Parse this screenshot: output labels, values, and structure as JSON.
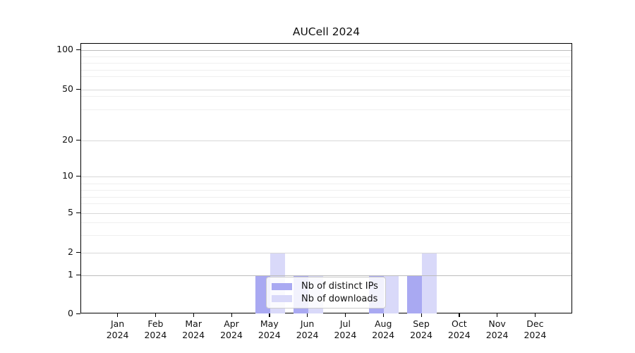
{
  "title": "AUCell 2024",
  "chart_data": {
    "type": "bar",
    "title": "AUCell 2024",
    "categories": [
      "Jan",
      "Feb",
      "Mar",
      "Apr",
      "May",
      "Jun",
      "Jul",
      "Aug",
      "Sep",
      "Oct",
      "Nov",
      "Dec"
    ],
    "year_label": "2024",
    "series": [
      {
        "name": "Nb of distinct IPs",
        "color": "#a9a9f2",
        "values": [
          0,
          0,
          0,
          0,
          1,
          1,
          0,
          1,
          1,
          0,
          0,
          0
        ]
      },
      {
        "name": "Nb of downloads",
        "color": "#d9d9f9",
        "values": [
          0,
          0,
          0,
          0,
          2,
          1,
          0,
          1,
          2,
          0,
          0,
          0
        ]
      }
    ],
    "y_axis": {
      "scale": "log-above-1-linear-to-0",
      "tick_values": [
        0,
        1,
        2,
        5,
        10,
        20,
        50,
        100
      ],
      "tick_labels": [
        "0",
        "1",
        "2",
        "5",
        "10",
        "20",
        "50",
        "100"
      ],
      "minor_tick_values": [
        90,
        80,
        70,
        60,
        40,
        30,
        9,
        8,
        7,
        6,
        4,
        3
      ],
      "ylim": [
        0,
        130
      ]
    },
    "x_axis": {
      "tick_label_line2": "2024"
    },
    "legend": {
      "position": "inside-bottom-center",
      "entries": [
        "Nb of distinct IPs",
        "Nb of downloads"
      ]
    },
    "grid": true
  },
  "colors": {
    "background": "#ffffff",
    "axis": "#000000",
    "text": "#111111",
    "grid_major": "#d8d8d8",
    "grid_emphasis": "#bcbcbc",
    "grid_minor": "#efefef",
    "legend_border": "#cccccc"
  }
}
